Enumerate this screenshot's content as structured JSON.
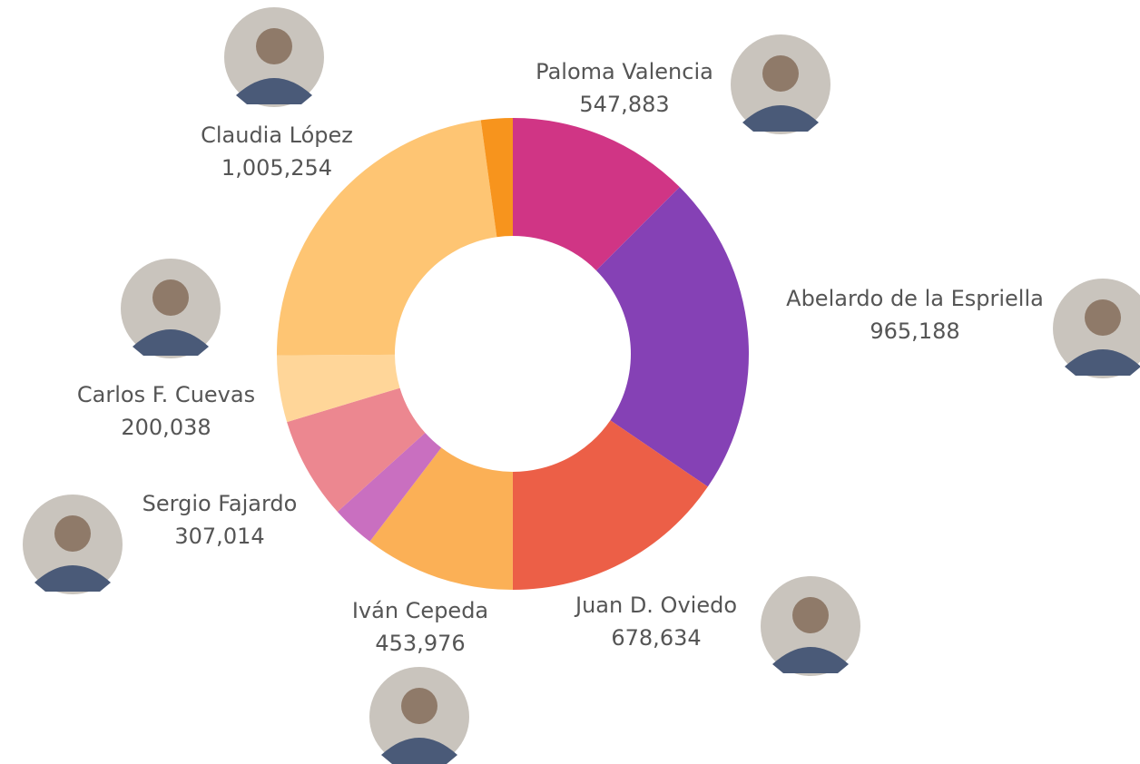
{
  "chart_data": {
    "type": "donut",
    "categories": [
      "Paloma Valencia",
      "Abelardo de la Espriella",
      "Juan D. Oviedo",
      "Iván Cepeda",
      null,
      "Sergio Fajardo",
      "Carlos F. Cuevas",
      "Claudia López",
      null
    ],
    "values": [
      547883,
      965188,
      678634,
      453976,
      130000,
      307014,
      200038,
      1005254,
      95000
    ],
    "value_labels": [
      "547,883",
      "965,188",
      "678,634",
      "453,976",
      null,
      "307,014",
      "200,038",
      "1,005,254",
      null
    ],
    "colors": [
      "#d03585",
      "#8541b5",
      "#ec5f47",
      "#fbb056",
      "#c96fc0",
      "#ec8790",
      "#ffd699",
      "#fec573",
      "#f7941d"
    ]
  }
}
